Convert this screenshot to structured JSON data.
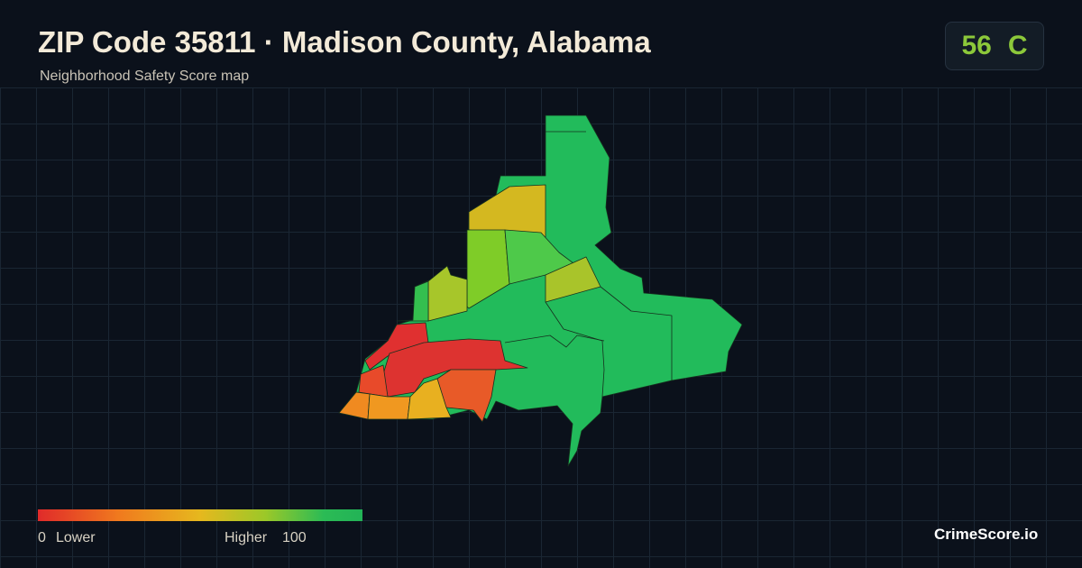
{
  "header": {
    "title": "ZIP Code 35811 · Madison County, Alabama",
    "subtitle": "Neighborhood Safety Score map"
  },
  "badge": {
    "score": 56,
    "grade": "C"
  },
  "legend": {
    "min": 0,
    "low_label": "Lower",
    "high_label": "Higher",
    "max": 100
  },
  "footer": {
    "brand": "CrimeScore.io"
  }
}
